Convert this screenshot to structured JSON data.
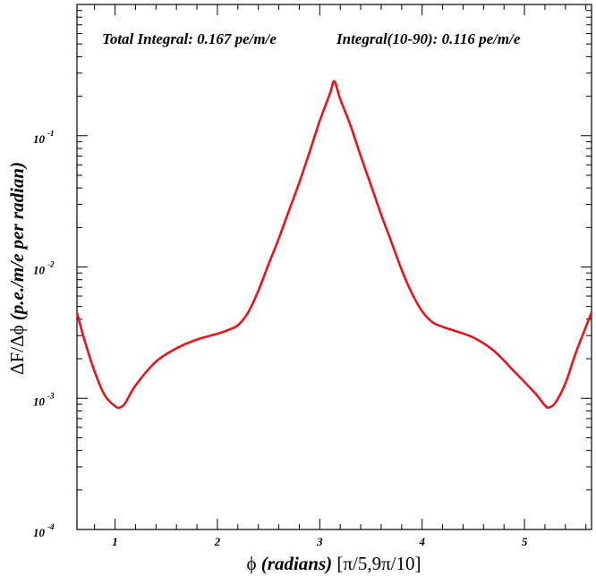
{
  "chart_data": {
    "type": "line",
    "title": "",
    "annotations": {
      "total": "Total Integral: 0.167 pe/m/e",
      "partial": "Integral(10-90): 0.116 pe/m/e"
    },
    "xlabel": {
      "symbol": "ϕ",
      "italic": "(radians)",
      "range": "[π/5,9π/10]"
    },
    "ylabel": {
      "prefix": "ΔF/Δϕ",
      "italic": "(p.e./m/e per radian)"
    },
    "xlim": [
      0.628,
      5.655
    ],
    "ylim": [
      0.0001,
      1
    ],
    "yscale": "log",
    "x_ticks": [
      {
        "value": 1,
        "label": "1"
      },
      {
        "value": 2,
        "label": "2"
      },
      {
        "value": 3,
        "label": "3"
      },
      {
        "value": 4,
        "label": "4"
      },
      {
        "value": 5,
        "label": "5"
      }
    ],
    "y_ticks": [
      {
        "value": 0.1,
        "base": "10",
        "exp": "-1"
      },
      {
        "value": 0.01,
        "base": "10",
        "exp": "-2"
      },
      {
        "value": 0.001,
        "base": "10",
        "exp": "-3"
      },
      {
        "value": 0.0001,
        "base": "10",
        "exp": "-4"
      }
    ],
    "series": [
      {
        "color": "#e8141b",
        "x": [
          0.628,
          0.7,
          0.8,
          0.9,
          1.0,
          1.047,
          1.1,
          1.2,
          1.4,
          1.6,
          1.8,
          2.0,
          2.1,
          2.2,
          2.3,
          2.4,
          2.5,
          2.6,
          2.7,
          2.8,
          2.9,
          3.0,
          3.1,
          3.142,
          3.2,
          3.3,
          3.4,
          3.5,
          3.6,
          3.7,
          3.8,
          3.9,
          4.0,
          4.1,
          4.2,
          4.3,
          4.5,
          4.7,
          4.9,
          5.1,
          5.2,
          5.236,
          5.3,
          5.4,
          5.5,
          5.6,
          5.655
        ],
        "y": [
          0.0045,
          0.0028,
          0.0016,
          0.00105,
          0.00087,
          0.00085,
          0.00092,
          0.00125,
          0.0019,
          0.0024,
          0.0028,
          0.0031,
          0.0033,
          0.0036,
          0.0045,
          0.0066,
          0.0105,
          0.0165,
          0.027,
          0.044,
          0.075,
          0.13,
          0.21,
          0.26,
          0.19,
          0.12,
          0.07,
          0.042,
          0.025,
          0.0155,
          0.0095,
          0.0063,
          0.0046,
          0.0038,
          0.0035,
          0.0033,
          0.0029,
          0.0023,
          0.0016,
          0.0011,
          0.00088,
          0.00085,
          0.00092,
          0.0013,
          0.0022,
          0.0035,
          0.0045
        ]
      }
    ],
    "grid": false,
    "legend": "none"
  }
}
